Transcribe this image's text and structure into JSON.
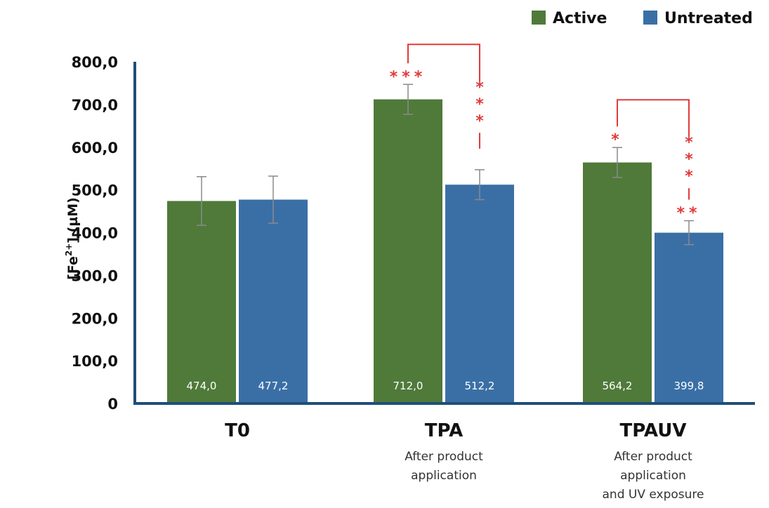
{
  "chart_data": {
    "type": "bar",
    "ylabel_main": "[Fe",
    "ylabel_sup": "2+",
    "ylabel_rest": "] (µM)",
    "ylim": [
      0,
      800
    ],
    "yticks": [
      {
        "value": 0,
        "label": "0"
      },
      {
        "value": 100,
        "label": "100,0"
      },
      {
        "value": 200,
        "label": "200,0"
      },
      {
        "value": 300,
        "label": "300,0"
      },
      {
        "value": 400,
        "label": "400,0"
      },
      {
        "value": 500,
        "label": "500,0"
      },
      {
        "value": 600,
        "label": "600,0"
      },
      {
        "value": 700,
        "label": "700,0"
      },
      {
        "value": 800,
        "label": "800,0"
      }
    ],
    "legend_position": "top-right",
    "categories": [
      {
        "label": "T0",
        "sub": []
      },
      {
        "label": "TPA",
        "sub": [
          "After product",
          "application"
        ]
      },
      {
        "label": "TPAUV",
        "sub": [
          "After product",
          "application",
          "and UV exposure"
        ]
      }
    ],
    "series": [
      {
        "name": "Active",
        "color": "#4f7a3a",
        "values": [
          474.0,
          712.0,
          564.2
        ],
        "labels": [
          "474,0",
          "712,0",
          "564,2"
        ],
        "errors": [
          57,
          35,
          35
        ],
        "significance": [
          "",
          "***",
          "*"
        ]
      },
      {
        "name": "Untreated",
        "color": "#3a6fa6",
        "values": [
          477.2,
          512.2,
          399.8
        ],
        "labels": [
          "477,2",
          "512,2",
          "399,8"
        ],
        "errors": [
          55,
          35,
          28
        ],
        "significance": [
          "",
          "",
          "**"
        ]
      }
    ],
    "brackets": [
      {
        "category": 1,
        "label": "***"
      },
      {
        "category": 2,
        "label": "***"
      }
    ]
  }
}
